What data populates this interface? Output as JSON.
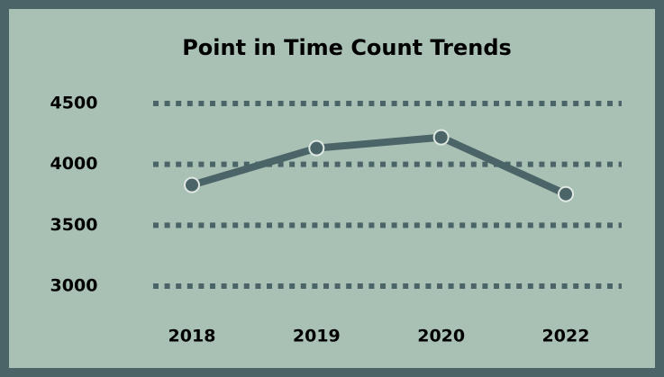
{
  "chart_data": {
    "type": "line",
    "title": "Point in Time Count Trends",
    "categories": [
      "2018",
      "2019",
      "2020",
      "2022"
    ],
    "values": [
      3830,
      4133,
      4222,
      3756
    ],
    "color": "#4a6467",
    "ylim": [
      3000,
      4500
    ],
    "yticks": [
      3000,
      3500,
      4000,
      4500
    ],
    "grid": true
  }
}
